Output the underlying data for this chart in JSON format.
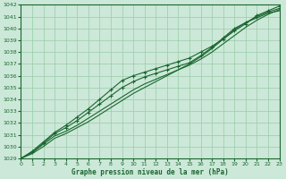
{
  "xlabel": "Graphe pression niveau de la mer (hPa)",
  "ylim": [
    1029,
    1042
  ],
  "xlim": [
    0,
    23
  ],
  "yticks": [
    1029,
    1030,
    1031,
    1032,
    1033,
    1034,
    1035,
    1036,
    1037,
    1038,
    1039,
    1040,
    1041,
    1042
  ],
  "xticks": [
    0,
    1,
    2,
    3,
    4,
    5,
    6,
    7,
    8,
    9,
    10,
    11,
    12,
    13,
    14,
    15,
    16,
    17,
    18,
    19,
    20,
    21,
    22,
    23
  ],
  "bg_color": "#cce8d8",
  "grid_color": "#99ccaa",
  "line_color": "#1a6630",
  "series": [
    [
      1029.0,
      1029.5,
      1030.2,
      1030.9,
      1031.3,
      1031.8,
      1032.4,
      1033.0,
      1033.6,
      1034.2,
      1034.8,
      1035.3,
      1035.7,
      1036.1,
      1036.5,
      1036.9,
      1037.4,
      1038.0,
      1038.7,
      1039.4,
      1040.1,
      1040.7,
      1041.2,
      1041.6
    ],
    [
      1029.0,
      1029.6,
      1030.4,
      1031.2,
      1031.8,
      1032.5,
      1033.2,
      1034.0,
      1034.8,
      1035.6,
      1036.0,
      1036.3,
      1036.6,
      1036.9,
      1037.2,
      1037.5,
      1038.0,
      1038.5,
      1039.1,
      1039.8,
      1040.4,
      1041.1,
      1041.5,
      1041.9
    ],
    [
      1029.0,
      1029.4,
      1030.0,
      1030.7,
      1031.1,
      1031.6,
      1032.1,
      1032.7,
      1033.3,
      1033.9,
      1034.5,
      1035.0,
      1035.5,
      1036.0,
      1036.5,
      1037.0,
      1037.6,
      1038.3,
      1039.1,
      1039.9,
      1040.5,
      1040.9,
      1041.3,
      1041.5
    ],
    [
      1029.0,
      1029.5,
      1030.3,
      1031.1,
      1031.6,
      1032.2,
      1032.9,
      1033.6,
      1034.3,
      1035.0,
      1035.5,
      1035.9,
      1036.2,
      1036.5,
      1036.8,
      1037.1,
      1037.7,
      1038.4,
      1039.2,
      1040.0,
      1040.5,
      1041.0,
      1041.4,
      1041.7
    ]
  ],
  "marker_series": [
    1,
    3
  ],
  "marker": "+",
  "marker_indices": [
    0,
    2,
    4,
    6,
    8,
    10,
    12,
    14,
    16,
    18,
    20,
    22
  ]
}
